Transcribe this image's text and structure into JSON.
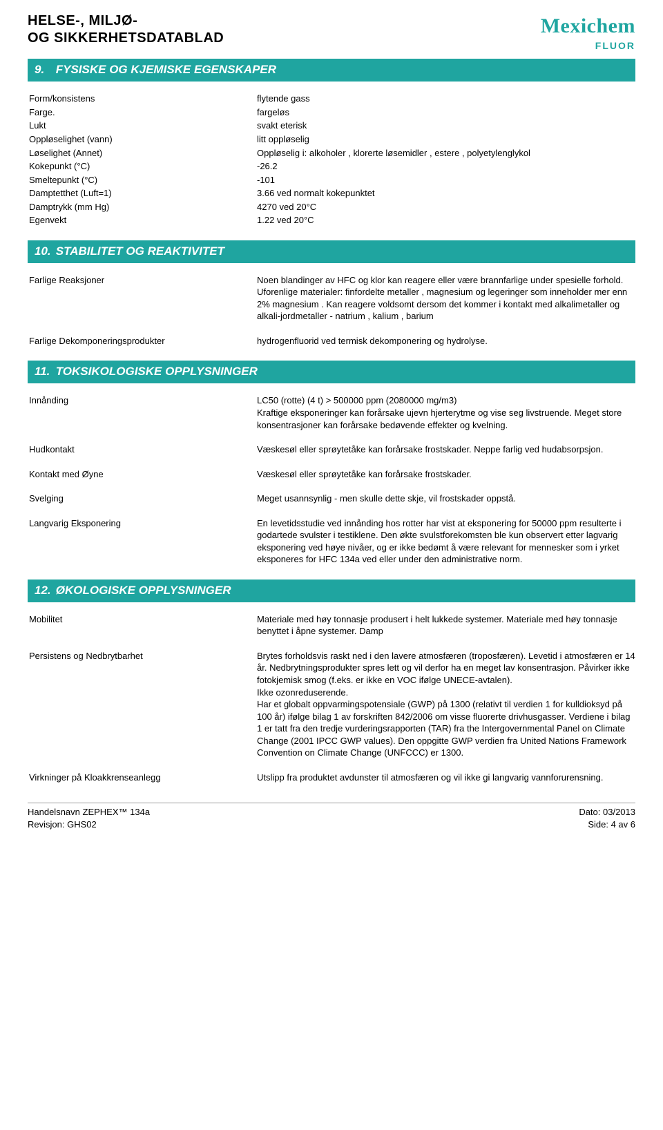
{
  "colors": {
    "brand": "#1fa5a0",
    "text": "#000000",
    "background": "#ffffff",
    "footer_rule": "#999999"
  },
  "typography": {
    "base_family": "Arial, Helvetica, sans-serif",
    "base_size_pt": 10,
    "header_title_size_pt": 15,
    "section_bar_size_pt": 13
  },
  "header": {
    "title_line1": "HELSE-, MILJØ-",
    "title_line2": "OG SIKKERHETSDATABLAD",
    "logo_main": "Mexichem",
    "logo_sub": "FLUOR"
  },
  "sections": {
    "s9": {
      "num": "9.",
      "title": "FYSISKE OG KJEMISKE EGENSKAPER"
    },
    "s10": {
      "num": "10.",
      "title": "STABILITET OG  REAKTIVITET"
    },
    "s11": {
      "num": "11.",
      "title": "TOKSIKOLOGISKE OPPLYSNINGER"
    },
    "s12": {
      "num": "12.",
      "title": "ØKOLOGISKE OPPLYSNINGER"
    }
  },
  "s9rows": [
    {
      "k": "Form/konsistens",
      "v": "flytende gass"
    },
    {
      "k": "Farge.",
      "v": "fargeløs"
    },
    {
      "k": "Lukt",
      "v": "svakt eterisk"
    },
    {
      "k": "Oppløselighet (vann)",
      "v": "litt oppløselig"
    },
    {
      "k": "Løselighet (Annet)",
      "v": "Oppløselig i: alkoholer , klorerte løsemidler , estere , polyetylenglykol"
    },
    {
      "k": "Kokepunkt (°C)",
      "v": "-26.2"
    },
    {
      "k": "Smeltepunkt (°C)",
      "v": "-101"
    },
    {
      "k": "Damptetthet (Luft=1)",
      "v": "3.66 ved normalt kokepunktet"
    },
    {
      "k": "Damptrykk (mm Hg)",
      "v": "4270 ved 20°C"
    },
    {
      "k": "Egenvekt",
      "v": "1.22 ved 20°C"
    }
  ],
  "s10rows": [
    {
      "k": "Farlige Reaksjoner",
      "v": "Noen blandinger av HFC og klor kan reagere eller være brannfarlige under spesielle forhold.\nUforenlige materialer: finfordelte metaller , magnesium og legeringer som inneholder mer enn 2% magnesium . Kan reagere voldsomt dersom det kommer i kontakt med alkalimetaller og alkali-jordmetaller - natrium , kalium , barium"
    },
    {
      "k": "Farlige Dekomponeringsprodukter",
      "v": "hydrogenfluorid ved termisk dekomponering og hydrolyse."
    }
  ],
  "s11rows": [
    {
      "k": "Innånding",
      "v": "LC50 (rotte) (4 t) > 500000 ppm (2080000 mg/m3)\nKraftige eksponeringer kan forårsake ujevn hjerterytme og vise seg livstruende. Meget store konsentrasjoner kan forårsake bedøvende effekter og kvelning."
    },
    {
      "k": "Hudkontakt",
      "v": "Væskesøl eller sprøytetåke kan forårsake frostskader. Neppe farlig ved hudabsorpsjon."
    },
    {
      "k": "Kontakt med Øyne",
      "v": "Væskesøl eller sprøytetåke kan forårsake frostskader."
    },
    {
      "k": "Svelging",
      "v": "Meget usannsynlig - men skulle dette skje, vil frostskader oppstå."
    },
    {
      "k": "Langvarig Eksponering",
      "v": "En levetidsstudie ved innånding hos rotter har vist at eksponering for 50000 ppm resulterte i godartede svulster i testiklene. Den økte svulstforekomsten ble kun observert etter lagvarig eksponering ved høye nivåer, og er ikke bedømt å være relevant for mennesker som i yrket eksponeres for HFC 134a ved eller under den administrative norm."
    }
  ],
  "s12rows": [
    {
      "k": "Mobilitet",
      "v": "Materiale med høy tonnasje produsert i helt lukkede systemer. Materiale med høy tonnasje benyttet i åpne systemer. Damp"
    },
    {
      "k": "Persistens og Nedbrytbarhet",
      "v": "Brytes forholdsvis raskt ned i den lavere atmosfæren (troposfæren). Levetid i atmosfæren er 14 år. Nedbrytningsprodukter spres lett og vil derfor ha en meget lav konsentrasjon. Påvirker ikke fotokjemisk smog (f.eks. er ikke en VOC ifølge UNECE-avtalen).\nIkke ozonreduserende.\nHar et globalt oppvarmingspotensiale (GWP) på 1300 (relativt til verdien 1 for kulldioksyd på 100 år) ifølge bilag 1 av forskriften 842/2006 om visse fluorerte drivhusgasser. Verdiene i bilag 1 er tatt fra den tredje vurderingsrapporten (TAR) fra the Intergovernmental Panel on Climate Change (2001 IPCC GWP values). Den oppgitte GWP verdien fra United Nations Framework Convention on Climate Change (UNFCCC) er 1300."
    },
    {
      "k": "Virkninger på Kloakkrenseanlegg",
      "v": "Utslipp fra produktet avdunster til atmosfæren og vil ikke gi langvarig vannforurensning."
    }
  ],
  "footer": {
    "left1": "Handelsnavn ZEPHEX™ 134a",
    "left2": "Revisjon: GHS02",
    "right1": "Dato: 03/2013",
    "right2": "Side: 4 av  6"
  }
}
